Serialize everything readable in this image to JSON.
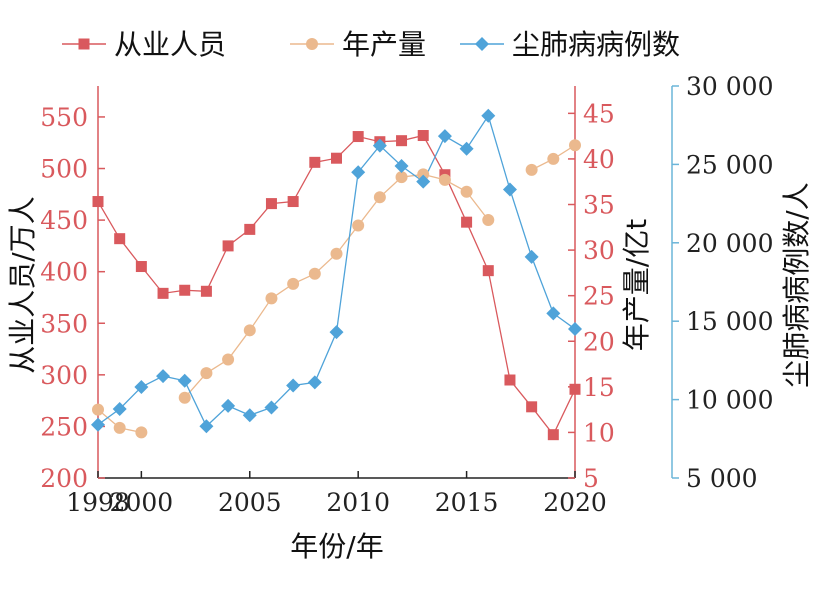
{
  "chart_data": {
    "type": "line",
    "x": [
      1998,
      1999,
      2000,
      2001,
      2002,
      2003,
      2004,
      2005,
      2006,
      2007,
      2008,
      2009,
      2010,
      2011,
      2012,
      2013,
      2014,
      2015,
      2016,
      2017,
      2018,
      2019,
      2020
    ],
    "xlabel": "年份/年",
    "xlim": [
      1998,
      2020
    ],
    "xticks": [
      "1998",
      "2000",
      "2005",
      "2010",
      "2015",
      "2020"
    ],
    "axes": {
      "left": {
        "label": "从业人员/万人",
        "ylim": [
          200,
          580
        ],
        "ticks": [
          "200",
          "250",
          "300",
          "350",
          "400",
          "450",
          "500",
          "550"
        ],
        "color": "#d9595d"
      },
      "right1": {
        "label": "年产量/亿t",
        "ylim": [
          5,
          48
        ],
        "ticks": [
          "5",
          "10",
          "15",
          "20",
          "25",
          "30",
          "35",
          "40",
          "45"
        ],
        "color": "#d9595d"
      },
      "right2": {
        "label": "尘肺病病例数/人",
        "ylim": [
          5000,
          30000
        ],
        "ticks": [
          "5 000",
          "10 000",
          "15 000",
          "20 000",
          "25 000",
          "30 000"
        ],
        "color": "#6bb5d9"
      }
    },
    "series": [
      {
        "name": "从业人员",
        "axis": "left",
        "color": "#d9595d",
        "marker": "square",
        "values": [
          468,
          432,
          405,
          379,
          382,
          381,
          425,
          441,
          466,
          468,
          506,
          510,
          531,
          526,
          527,
          532,
          494,
          448,
          401,
          295,
          269,
          242,
          286
        ]
      },
      {
        "name": "年产量",
        "axis": "right1",
        "color": "#ebb98e",
        "marker": "circle",
        "values": [
          12.5,
          10.5,
          10.0,
          null,
          13.8,
          16.5,
          18.0,
          21.2,
          24.7,
          26.3,
          27.4,
          29.6,
          32.7,
          35.8,
          38.0,
          38.3,
          37.7,
          36.4,
          33.3,
          null,
          38.8,
          40.0,
          41.5
        ]
      },
      {
        "name": "尘肺病病例数",
        "axis": "right2",
        "color": "#4fa3d9",
        "marker": "diamond",
        "values": [
          8400,
          9400,
          10800,
          11500,
          11200,
          8300,
          9600,
          9000,
          9500,
          10900,
          11100,
          14300,
          24500,
          26200,
          24900,
          23900,
          26800,
          26000,
          28100,
          23400,
          19100,
          15500,
          14500
        ]
      }
    ],
    "legend": "top"
  }
}
